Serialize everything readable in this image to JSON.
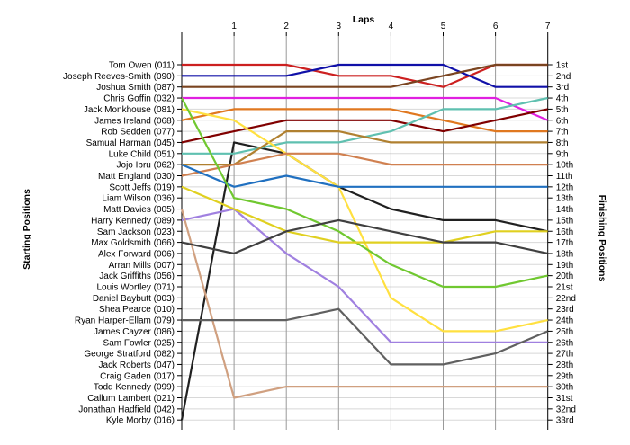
{
  "chart_data": {
    "type": "line",
    "title": "",
    "x_title": "Laps",
    "y_title_left": "Starting Positions",
    "y_title_right": "Finishing Positions",
    "laps": [
      0,
      1,
      2,
      3,
      4,
      5,
      6,
      7
    ],
    "x_tick_labels": [
      "1",
      "2",
      "3",
      "4",
      "5",
      "6",
      "7"
    ],
    "starting_labels": [
      "Tom Owen (011)",
      "Joseph Reeves-Smith (090)",
      "Joshua Smith (087)",
      "Chris Goffin (032)",
      "Jack Monkhouse (081)",
      "James Ireland (068)",
      "Rob Sedden (077)",
      "Samual Harman (045)",
      "Luke Child (051)",
      "Jojo Ibru (062)",
      "Matt England (030)",
      "Scott Jeffs (019)",
      "Liam Wilson (036)",
      "Matt Davies (005)",
      "Harry Kennedy (089)",
      "Sam Jackson (023)",
      "Max Goldsmith (066)",
      "Alex Forward (006)",
      "Arran Mills (007)",
      "Jack Griffiths (056)",
      "Louis Wortley (071)",
      "Daniel Baybutt (003)",
      "Shea Pearce (010)",
      "Ryan Harper-Ellam (079)",
      "James Cayzer (086)",
      "Sam Fowler (025)",
      "George Stratford (082)",
      "Jack Roberts (047)",
      "Craig Gaden (017)",
      "Todd Kennedy (099)",
      "Callum Lambert (021)",
      "Jonathan Hadfield (042)",
      "Kyle Morby (016)"
    ],
    "finishing_labels": [
      "1st",
      "2nd",
      "3rd",
      "4th",
      "5th",
      "6th",
      "7th",
      "8th",
      "9th",
      "10th",
      "11th",
      "12th",
      "13th",
      "14th",
      "15th",
      "16th",
      "17th",
      "18th",
      "19th",
      "20th",
      "21st",
      "22nd",
      "23rd",
      "24th",
      "25th",
      "26th",
      "27th",
      "28th",
      "29th",
      "30th",
      "31st",
      "32nd",
      "33rd"
    ],
    "series": [
      {
        "color": "#cc2020",
        "positions": [
          1,
          1,
          1,
          2,
          2,
          3,
          1,
          1
        ]
      },
      {
        "color": "#1010a8",
        "positions": [
          2,
          2,
          2,
          1,
          1,
          1,
          3,
          3
        ]
      },
      {
        "color": "#7a4420",
        "positions": [
          3,
          3,
          3,
          3,
          3,
          2,
          1,
          1
        ]
      },
      {
        "color": "#e020e0",
        "positions": [
          4,
          4,
          4,
          4,
          4,
          4,
          4,
          6
        ]
      },
      {
        "color": "#e07820",
        "positions": [
          6,
          5,
          5,
          5,
          5,
          6,
          7,
          7
        ]
      },
      {
        "color": "#202020",
        "positions": [
          33,
          8,
          9,
          12,
          14,
          15,
          15,
          16
        ]
      },
      {
        "color": "#800000",
        "positions": [
          8,
          7,
          6,
          6,
          6,
          7,
          6,
          5
        ]
      },
      {
        "color": "#5fc0b0",
        "positions": [
          9,
          9,
          8,
          8,
          7,
          5,
          5,
          4
        ]
      },
      {
        "color": "#b08030",
        "positions": [
          10,
          10,
          7,
          7,
          8,
          8,
          8,
          8
        ]
      },
      {
        "color": "#ffe040",
        "positions": [
          5,
          6,
          9,
          12,
          22,
          25,
          25,
          24
        ]
      },
      {
        "color": "#d08050",
        "positions": [
          11,
          10,
          9,
          9,
          10,
          10,
          10,
          10
        ]
      },
      {
        "color": "#2070c0",
        "positions": [
          10,
          12,
          11,
          12,
          12,
          12,
          12,
          12
        ]
      },
      {
        "color": "#a080e0",
        "positions": [
          15,
          14,
          18,
          21,
          26,
          26,
          26,
          26
        ]
      },
      {
        "color": "#70c830",
        "positions": [
          4,
          13,
          14,
          16,
          19,
          21,
          21,
          20
        ]
      },
      {
        "color": "#d0a080",
        "positions": [
          14,
          31,
          30,
          30,
          30,
          30,
          30,
          30
        ]
      },
      {
        "color": "#e0d020",
        "positions": [
          12,
          14,
          16,
          17,
          17,
          17,
          16,
          16
        ]
      },
      {
        "color": "#404040",
        "positions": [
          17,
          18,
          16,
          15,
          16,
          17,
          17,
          18
        ]
      },
      {
        "color": "#606060",
        "positions": [
          24,
          24,
          24,
          23,
          28,
          28,
          27,
          25
        ]
      }
    ]
  }
}
